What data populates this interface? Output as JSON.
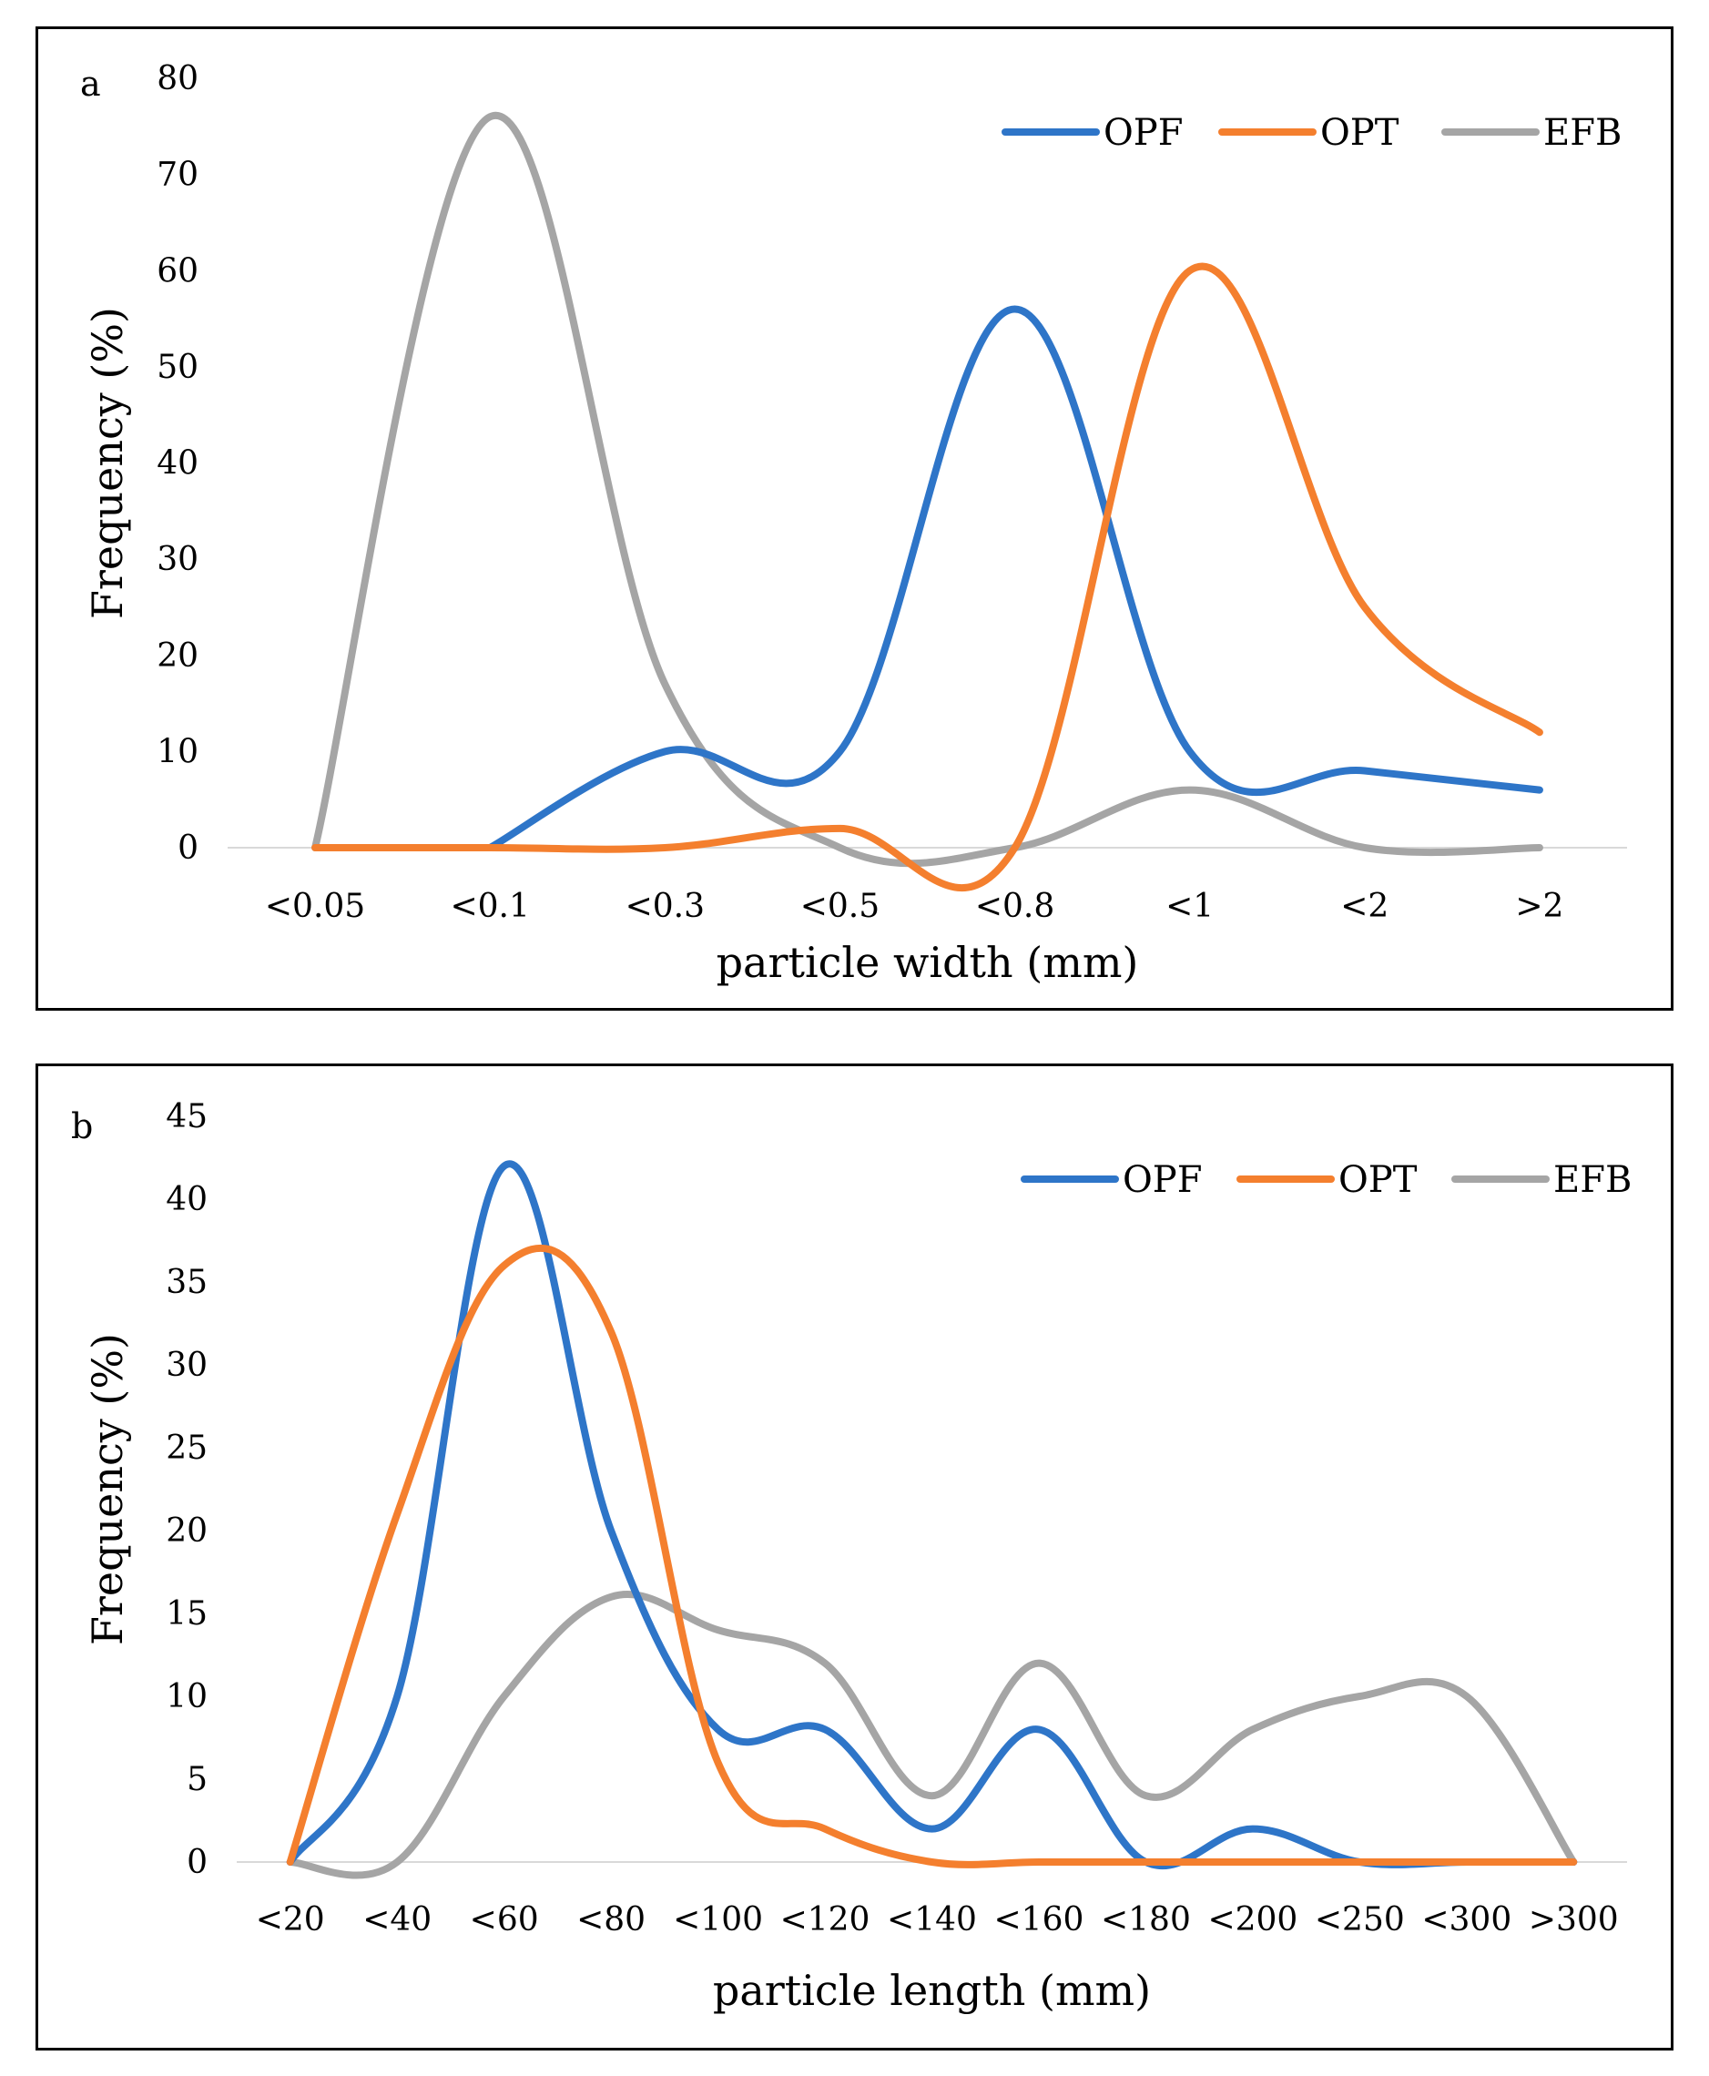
{
  "chart_data": [
    {
      "type": "line",
      "panel_label": "a",
      "title": "",
      "xlabel": "particle width (mm)",
      "ylabel": "Frequency (%)",
      "ylim": [
        0,
        80
      ],
      "yticks": [
        "0",
        "10",
        "20",
        "30",
        "40",
        "50",
        "60",
        "70",
        "80"
      ],
      "categories": [
        "<0.05",
        "<0.1",
        "<0.3",
        "<0.5",
        "<0.8",
        "<1",
        "<2",
        ">2"
      ],
      "legend_position": "top-right",
      "grid": false,
      "series": [
        {
          "name": "OPF",
          "color": "#2e75c8",
          "values": [
            null,
            0,
            10,
            10,
            56,
            10,
            8,
            6
          ]
        },
        {
          "name": "OPT",
          "color": "#f47f2e",
          "values": [
            0,
            0,
            0,
            2,
            0,
            60,
            25,
            12
          ]
        },
        {
          "name": "EFB",
          "color": "#a5a5a5",
          "values": [
            0,
            76,
            17,
            0,
            0,
            6,
            0,
            0
          ]
        }
      ]
    },
    {
      "type": "line",
      "panel_label": "b",
      "title": "",
      "xlabel": "particle length (mm)",
      "ylabel": "Frequency (%)",
      "ylim": [
        0,
        45
      ],
      "yticks": [
        "0",
        "5",
        "10",
        "15",
        "20",
        "25",
        "30",
        "35",
        "40",
        "45"
      ],
      "categories": [
        "<20",
        "<40",
        "<60",
        "<80",
        "<100",
        "<120",
        "<140",
        "<160",
        "<180",
        "<200",
        "<250",
        "<300",
        ">300"
      ],
      "legend_position": "top-right",
      "grid": false,
      "series": [
        {
          "name": "OPF",
          "color": "#2e75c8",
          "values": [
            0,
            10,
            42,
            20,
            8,
            8,
            2,
            8,
            0,
            2,
            0,
            0,
            0
          ]
        },
        {
          "name": "OPT",
          "color": "#f47f2e",
          "values": [
            0,
            21,
            36,
            32,
            6,
            2,
            0,
            0,
            0,
            0,
            0,
            0,
            0
          ]
        },
        {
          "name": "EFB",
          "color": "#a5a5a5",
          "values": [
            0,
            0,
            10,
            16,
            14,
            12,
            4,
            12,
            4,
            8,
            10,
            10,
            0
          ]
        }
      ]
    }
  ]
}
